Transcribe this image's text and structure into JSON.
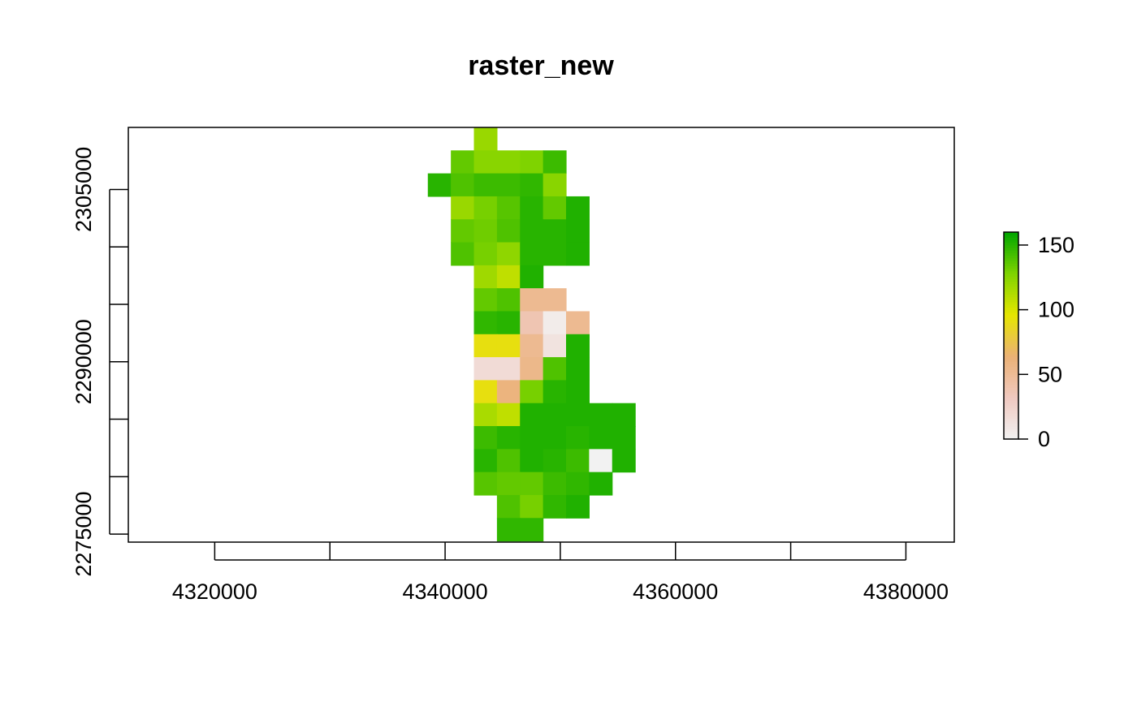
{
  "chart_data": {
    "type": "heatmap",
    "title": "raster_new",
    "xlabel": "",
    "ylabel": "",
    "x_ticks": [
      4320000,
      4340000,
      4360000,
      4380000
    ],
    "x_tick_labels": [
      "4320000",
      "4340000",
      "4360000",
      "4380000"
    ],
    "y_ticks": [
      2275000,
      2290000,
      2305000
    ],
    "y_tick_labels": [
      "2275000",
      "2290000",
      "2305000"
    ],
    "xlim": [
      4312500,
      4384200
    ],
    "ylim": [
      2274300,
      2310400
    ],
    "raster": {
      "xmin": 4338500,
      "ymax": 2310400,
      "cell_size": 2000,
      "nodata": null,
      "values": [
        [
          null,
          null,
          120,
          null,
          null,
          null,
          null,
          null,
          null
        ],
        [
          null,
          135,
          125,
          125,
          128,
          145,
          null,
          null,
          null
        ],
        [
          150,
          140,
          145,
          145,
          148,
          125,
          null,
          null,
          null
        ],
        [
          null,
          120,
          130,
          138,
          150,
          135,
          152,
          null,
          null
        ],
        [
          null,
          135,
          132,
          140,
          150,
          150,
          152,
          null,
          null
        ],
        [
          null,
          140,
          130,
          123,
          150,
          150,
          152,
          null,
          null
        ],
        [
          null,
          null,
          118,
          108,
          152,
          null,
          null,
          null,
          null
        ],
        [
          null,
          null,
          135,
          140,
          52,
          52,
          null,
          null,
          null
        ],
        [
          null,
          null,
          148,
          150,
          38,
          5,
          52,
          null,
          null
        ],
        [
          null,
          null,
          92,
          92,
          52,
          12,
          152,
          null,
          null
        ],
        [
          null,
          null,
          18,
          18,
          55,
          140,
          152,
          null,
          null
        ],
        [
          null,
          null,
          92,
          60,
          130,
          150,
          152,
          null,
          null
        ],
        [
          null,
          null,
          115,
          108,
          152,
          152,
          152,
          152,
          152
        ],
        [
          null,
          null,
          145,
          150,
          152,
          152,
          150,
          152,
          152
        ],
        [
          null,
          null,
          150,
          140,
          152,
          150,
          145,
          0,
          152
        ],
        [
          null,
          null,
          138,
          135,
          135,
          145,
          148,
          152,
          null
        ],
        [
          null,
          null,
          null,
          140,
          130,
          148,
          152,
          null,
          null
        ],
        [
          null,
          null,
          null,
          148,
          148,
          null,
          null,
          null,
          null
        ]
      ]
    },
    "legend": {
      "placement": "right",
      "min": 0,
      "max": 160,
      "ticks": [
        0,
        50,
        100,
        150
      ],
      "tick_labels": [
        "0",
        "50",
        "100",
        "150"
      ],
      "colormap": [
        "#F2F2F2",
        "#F0C9C0",
        "#EBB175",
        "#E6E600",
        "#7FD300",
        "#00A600"
      ]
    }
  }
}
